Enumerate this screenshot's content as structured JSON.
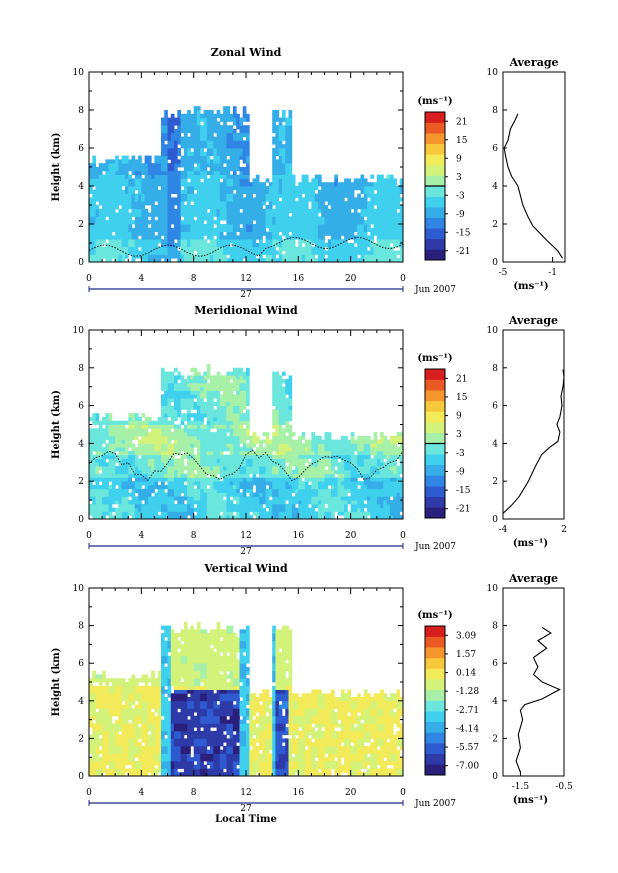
{
  "figure": {
    "x_axis_label": "Local Time",
    "date_label": "Jun 2007",
    "day_label": "27",
    "x_ticks": [
      "0",
      "4",
      "8",
      "12",
      "16",
      "20",
      "0"
    ],
    "y_ticks": [
      "0",
      "2",
      "4",
      "6",
      "8",
      "10"
    ],
    "y_label": "Height (km)",
    "colorbar_unit": "(ms⁻¹)",
    "average_title": "Average",
    "average_unit": "(ms⁻¹)",
    "colorscale": [
      "#2a1f7a",
      "#2d3aa8",
      "#2f5bd0",
      "#2f86e4",
      "#35aee8",
      "#3fd0ee",
      "#6ae6dc",
      "#a6f0a8",
      "#d2f27a",
      "#f2ea58",
      "#f8c83c",
      "#f4962c",
      "#ec5a24",
      "#d81e1e"
    ]
  },
  "chart_data": [
    {
      "type": "heatmap",
      "title": "Zonal Wind",
      "xlabel": "",
      "ylabel": "Height (km)",
      "xlim": [
        0,
        24
      ],
      "ylim": [
        0,
        10
      ],
      "colorbar": {
        "ticks": [
          "21",
          "15",
          "9",
          "3",
          "-3",
          "-9",
          "-15",
          "-21"
        ],
        "range": [
          -24,
          24
        ],
        "contour_level": 0
      },
      "profile": {
        "title": "Average",
        "xlim": [
          -5,
          0
        ],
        "xticks": [
          "-5",
          "-1"
        ],
        "points": [
          [
            -0.2,
            0.2
          ],
          [
            -0.6,
            0.6
          ],
          [
            -1.4,
            1.1
          ],
          [
            -2.0,
            1.5
          ],
          [
            -2.6,
            1.9
          ],
          [
            -3.0,
            2.4
          ],
          [
            -3.4,
            3.0
          ],
          [
            -3.6,
            3.5
          ],
          [
            -3.8,
            4.0
          ],
          [
            -4.3,
            4.5
          ],
          [
            -4.6,
            5.0
          ],
          [
            -4.8,
            5.6
          ],
          [
            -4.9,
            6.0
          ],
          [
            -4.6,
            6.4
          ],
          [
            -4.4,
            7.0
          ],
          [
            -4.0,
            7.5
          ],
          [
            -3.8,
            7.8
          ]
        ]
      }
    },
    {
      "type": "heatmap",
      "title": "Meridional Wind",
      "xlabel": "",
      "ylabel": "Height (km)",
      "xlim": [
        0,
        24
      ],
      "ylim": [
        0,
        10
      ],
      "colorbar": {
        "ticks": [
          "21",
          "15",
          "9",
          "3",
          "-3",
          "-9",
          "-15",
          "-21"
        ],
        "range": [
          -24,
          24
        ],
        "contour_level": 0
      },
      "profile": {
        "title": "Average",
        "xlim": [
          -4,
          2
        ],
        "xticks": [
          "-4",
          "2"
        ],
        "points": [
          [
            -4.0,
            0.3
          ],
          [
            -3.2,
            0.7
          ],
          [
            -2.4,
            1.2
          ],
          [
            -1.5,
            2.0
          ],
          [
            -0.8,
            2.8
          ],
          [
            -0.2,
            3.4
          ],
          [
            0.6,
            3.8
          ],
          [
            1.4,
            4.1
          ],
          [
            1.6,
            4.6
          ],
          [
            1.3,
            5.0
          ],
          [
            1.6,
            5.4
          ],
          [
            1.8,
            6.0
          ],
          [
            1.7,
            6.5
          ],
          [
            1.9,
            7.0
          ],
          [
            2.0,
            7.5
          ],
          [
            1.9,
            7.9
          ]
        ]
      }
    },
    {
      "type": "heatmap",
      "title": "Vertical Wind",
      "xlabel": "Local Time",
      "ylabel": "Height (km)",
      "xlim": [
        0,
        24
      ],
      "ylim": [
        0,
        10
      ],
      "colorbar": {
        "ticks": [
          "3.09",
          "1.57",
          "0.14",
          "-1.28",
          "-2.71",
          "-4.14",
          "-5.57",
          "-7.00"
        ],
        "range": [
          -8,
          4
        ],
        "contour_level": null
      },
      "profile": {
        "title": "Average",
        "xlim": [
          -1.9,
          -0.5
        ],
        "xticks": [
          "-1.5",
          "-0.5"
        ],
        "points": [
          [
            -1.5,
            0.2
          ],
          [
            -1.6,
            0.8
          ],
          [
            -1.5,
            1.5
          ],
          [
            -1.55,
            2.2
          ],
          [
            -1.45,
            3.0
          ],
          [
            -1.5,
            3.5
          ],
          [
            -1.4,
            3.8
          ],
          [
            -1.0,
            4.1
          ],
          [
            -0.6,
            4.6
          ],
          [
            -1.0,
            5.0
          ],
          [
            -1.2,
            5.4
          ],
          [
            -1.1,
            5.8
          ],
          [
            -1.2,
            6.3
          ],
          [
            -0.9,
            6.8
          ],
          [
            -1.1,
            7.2
          ],
          [
            -0.8,
            7.6
          ],
          [
            -1.0,
            7.9
          ]
        ]
      }
    }
  ]
}
